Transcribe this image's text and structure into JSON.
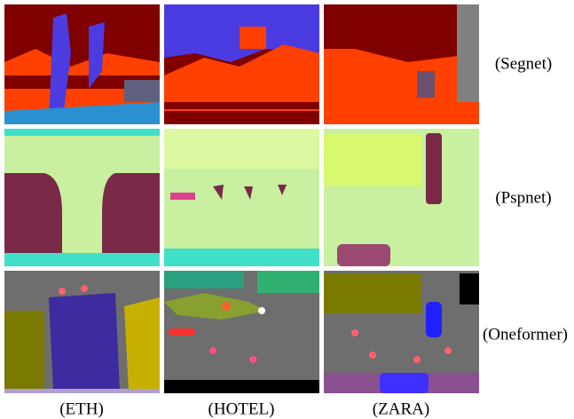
{
  "columns": [
    "(ETH)",
    "(HOTEL)",
    "(ZARA)"
  ],
  "rows": [
    "(Segnet)",
    "(Pspnet)",
    "(Oneformer)"
  ]
}
